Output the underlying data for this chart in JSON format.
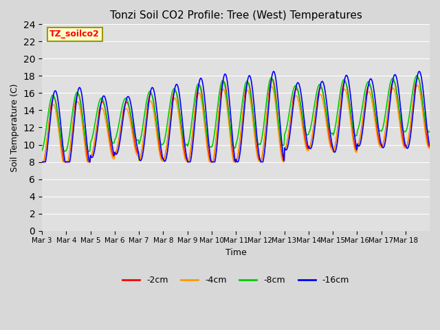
{
  "title": "Tonzi Soil CO2 Profile: Tree (West) Temperatures",
  "xlabel": "Time",
  "ylabel": "Soil Temperature (C)",
  "ylim": [
    0,
    24
  ],
  "yticks": [
    0,
    2,
    4,
    6,
    8,
    10,
    12,
    14,
    16,
    18,
    20,
    22,
    24
  ],
  "colors": {
    "-2cm": "#ff0000",
    "-4cm": "#ff9900",
    "-8cm": "#00cc00",
    "-16cm": "#0000ff"
  },
  "legend_box_facecolor": "#ffffcc",
  "legend_box_edgecolor": "#999900",
  "fig_bg_color": "#d8d8d8",
  "plot_bg_color": "#e0e0e0",
  "x_tick_labels": [
    "Mar 3",
    "Mar 4",
    "Mar 5",
    "Mar 6",
    "Mar 7",
    "Mar 8",
    "Mar 9",
    "Mar 10",
    "Mar 11",
    "Mar 12",
    "Mar 13",
    "Mar 14",
    "Mar 15",
    "Mar 16",
    "Mar 17",
    "Mar 18"
  ],
  "n_days": 16,
  "pts_per_day": 48,
  "linewidth": 1.2,
  "amp_pattern": [
    4.0,
    4.2,
    3.2,
    3.0,
    3.8,
    4.0,
    4.5,
    4.8,
    4.5,
    4.8,
    3.5,
    3.5,
    4.0,
    3.5,
    3.8,
    4.0
  ],
  "base_2cm": 11.5,
  "base_4cm": 11.0,
  "base_8cm": 12.5,
  "base_16cm": 11.8,
  "phase_2cm": 0.0,
  "phase_4cm": 0.02,
  "phase_8cm": 0.04,
  "phase_16cm": -0.06,
  "damp_2cm": 1.0,
  "damp_4cm": 0.92,
  "damp_8cm": 0.82,
  "damp_16cm": 1.12,
  "trend": 0.15
}
